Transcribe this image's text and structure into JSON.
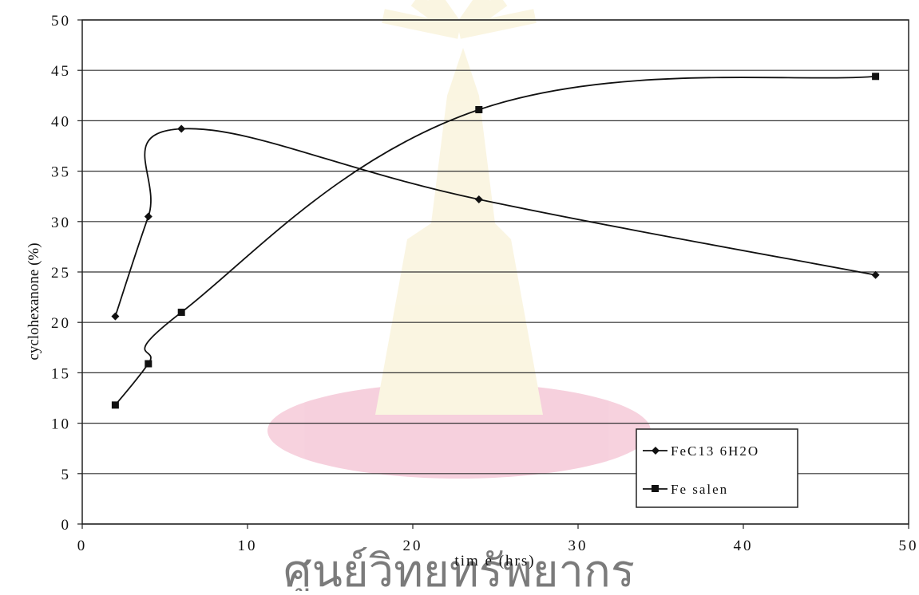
{
  "chart_data": {
    "type": "line",
    "title": "",
    "xlabel": "tim e (hrs)",
    "ylabel": "cyclohexanone (%)",
    "xlim": [
      0,
      50
    ],
    "ylim": [
      0,
      50
    ],
    "x_ticks": [
      "0",
      "10",
      "20",
      "30",
      "40",
      "50"
    ],
    "y_ticks": [
      "0",
      "5",
      "10",
      "15",
      "20",
      "25",
      "30",
      "35",
      "40",
      "45",
      "50"
    ],
    "grid": "horizontal",
    "legend_position": "bottom-right",
    "series": [
      {
        "name": "FeC13 6H2O",
        "marker": "diamond",
        "color": "#111111",
        "x": [
          2,
          4,
          6,
          24,
          48
        ],
        "y": [
          20.6,
          30.5,
          39.2,
          32.2,
          24.7
        ]
      },
      {
        "name": "Fe salen",
        "marker": "square",
        "color": "#111111",
        "x": [
          2,
          4,
          6,
          24,
          48
        ],
        "y": [
          11.8,
          15.9,
          21.0,
          41.1,
          44.4
        ]
      }
    ],
    "watermark_text": "ศูนย์วิทยทรัพยากร"
  }
}
